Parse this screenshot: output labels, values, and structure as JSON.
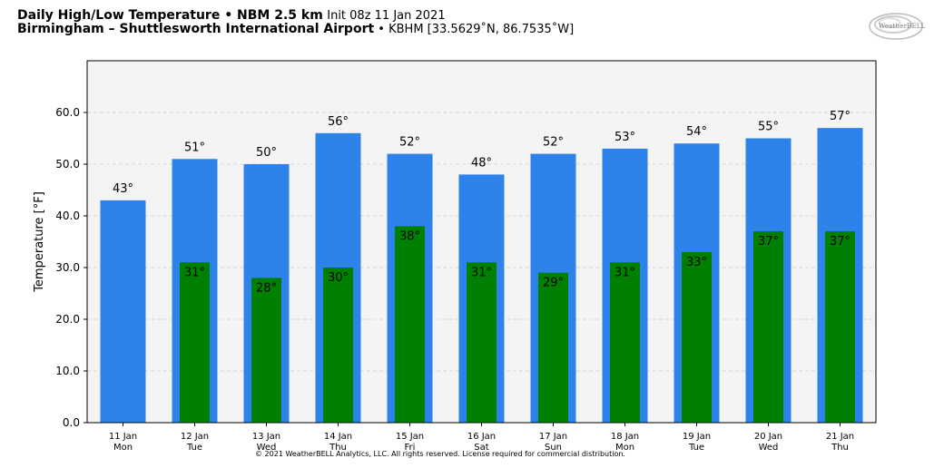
{
  "header": {
    "title_bold": "Daily High/Low Temperature • NBM 2.5 km",
    "title_init": "Init 08z 11 Jan 2021",
    "location_bold": "Birmingham – Shuttlesworth International Airport",
    "location_rest": " • KBHM [33.5629˚N, 86.7535˚W]"
  },
  "logo": {
    "text": "WeatherBELL"
  },
  "footer": {
    "copyright": "© 2021 WeatherBELL Analytics, LLC. All rights reserved. License required for commercial distribution."
  },
  "chart_data": {
    "type": "bar",
    "ylabel": "Temperature [°F]",
    "ylim": [
      0,
      70
    ],
    "yticks": [
      0,
      10,
      20,
      30,
      40,
      50,
      60
    ],
    "ytick_labels": [
      "0.0",
      "10.0",
      "20.0",
      "30.0",
      "40.0",
      "50.0",
      "60.0"
    ],
    "grid": true,
    "categories": [
      "11 Jan",
      "12 Jan",
      "13 Jan",
      "14 Jan",
      "15 Jan",
      "16 Jan",
      "17 Jan",
      "18 Jan",
      "19 Jan",
      "20 Jan",
      "21 Jan"
    ],
    "weekdays": [
      "Mon",
      "Tue",
      "Wed",
      "Thu",
      "Fri",
      "Sat",
      "Sun",
      "Mon",
      "Tue",
      "Wed",
      "Thu"
    ],
    "series": [
      {
        "values": [
          43,
          51,
          50,
          56,
          52,
          48,
          52,
          53,
          54,
          55,
          57
        ],
        "labels": [
          "43°",
          "51°",
          "50°",
          "56°",
          "52°",
          "48°",
          "52°",
          "53°",
          "54°",
          "55°",
          "57°"
        ],
        "color": "#2e83ea"
      },
      {
        "values": [
          null,
          31,
          28,
          30,
          38,
          31,
          29,
          31,
          33,
          37,
          37
        ],
        "labels": [
          "",
          "31°",
          "28°",
          "30°",
          "38°",
          "31°",
          "29°",
          "31°",
          "33°",
          "37°",
          "37°"
        ],
        "color": "#008000"
      }
    ],
    "plot_background": "#f4f4f4"
  }
}
